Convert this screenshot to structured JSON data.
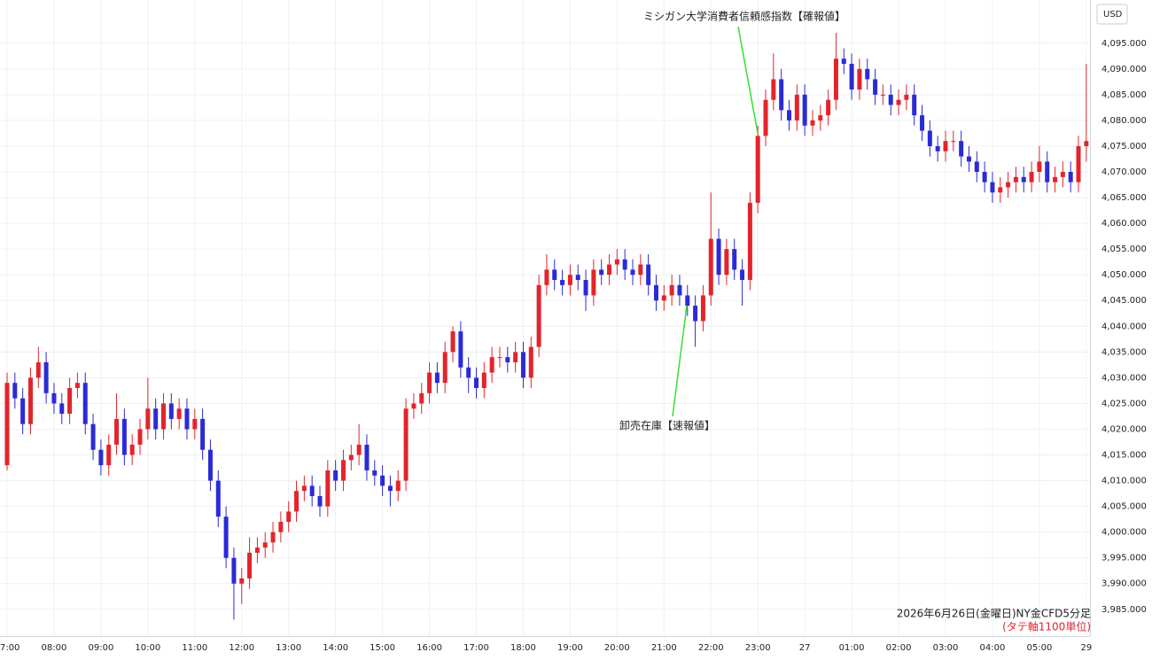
{
  "chart_data": {
    "type": "candlestick",
    "currency": "USD",
    "note": "2026年6月26日(金曜日)NY金CFD5分足",
    "note2": "(タテ軸1100単位)",
    "annotations": [
      {
        "text": "ミシガン大学消費者信頼感指数【確報値】"
      },
      {
        "text": "卸売在庫【速報値】"
      }
    ],
    "up_color": "#e3242b",
    "down_color": "#2b2bd6",
    "grid": true,
    "categories": [
      "07:00",
      null,
      null,
      null,
      null,
      null,
      "08:00",
      null,
      null,
      null,
      null,
      null,
      "09:00",
      null,
      null,
      null,
      null,
      null,
      "10:00",
      null,
      null,
      null,
      null,
      null,
      "11:00",
      null,
      null,
      null,
      null,
      null,
      "12:00",
      null,
      null,
      null,
      null,
      null,
      "13:00",
      null,
      null,
      null,
      null,
      null,
      "14:00",
      null,
      null,
      null,
      null,
      null,
      "15:00",
      null,
      null,
      null,
      null,
      null,
      "16:00",
      null,
      null,
      null,
      null,
      null,
      "17:00",
      null,
      null,
      null,
      null,
      null,
      "18:00",
      null,
      null,
      null,
      null,
      null,
      "19:00",
      null,
      null,
      null,
      null,
      null,
      "20:00",
      null,
      null,
      null,
      null,
      null,
      "21:00",
      null,
      null,
      null,
      null,
      null,
      "22:00",
      null,
      null,
      null,
      null,
      null,
      "23:00",
      null,
      null,
      null,
      null,
      null,
      "27",
      null,
      null,
      null,
      null,
      null,
      "01:00",
      null,
      null,
      null,
      null,
      null,
      "02:00",
      null,
      null,
      null,
      null,
      null,
      "03:00",
      null,
      null,
      null,
      null,
      null,
      "04:00",
      null,
      null,
      null,
      null,
      null,
      "05:00",
      null,
      null,
      null,
      null,
      null,
      "29"
    ],
    "open": [
      4013,
      4029,
      4026,
      4021,
      4030,
      4033,
      4027,
      4025,
      4023,
      4028,
      4029,
      4021,
      4016,
      4013,
      4017,
      4022,
      4015,
      4017,
      4020,
      4024,
      4020,
      4025,
      4022,
      4024,
      4020,
      4022,
      4016,
      4010,
      4003,
      3995,
      3990,
      3991,
      3996,
      3997,
      3998,
      4000,
      4002,
      4004,
      4008,
      4009,
      4007,
      4005,
      4012,
      4010,
      4014,
      4015,
      4017,
      4012,
      4011,
      4009,
      4008,
      4010,
      4024,
      4025,
      4027,
      4031,
      4029,
      4035,
      4039,
      4032,
      4030,
      4028,
      4031,
      4034,
      4034,
      4033,
      4035,
      4030,
      4036,
      4048,
      4051,
      4049,
      4048,
      4050,
      4049,
      4046,
      4051,
      4050,
      4052,
      4053,
      4051,
      4050,
      4052,
      4048,
      4045,
      4046,
      4048,
      4046,
      4044,
      4041,
      4046,
      4057,
      4050,
      4055,
      4051,
      4049,
      4064,
      4077,
      4084,
      4088,
      4082,
      4080,
      4085,
      4079,
      4080,
      4081,
      4084,
      4092,
      4091,
      4086,
      4090,
      4088,
      4085,
      4085,
      4083,
      4084,
      4085,
      4081,
      4078,
      4075,
      4074,
      4076,
      4076,
      4073,
      4072,
      4070,
      4068,
      4066,
      4067,
      4068,
      4069,
      4068,
      4070,
      4072,
      4068,
      4069,
      4070,
      4068,
      4075
    ],
    "high": [
      4031,
      4031,
      4028,
      4032,
      4036,
      4035,
      4029,
      4027,
      4030,
      4031,
      4031,
      4023,
      4018,
      4019,
      4027,
      4024,
      4019,
      4022,
      4030,
      4026,
      4027,
      4027,
      4026,
      4026,
      4024,
      4024,
      4018,
      4012,
      4005,
      3997,
      3993,
      3999,
      3999,
      4000,
      4002,
      4004,
      4006,
      4010,
      4011,
      4011,
      4009,
      4014,
      4014,
      4016,
      4017,
      4021,
      4019,
      4014,
      4013,
      4011,
      4012,
      4026,
      4027,
      4029,
      4033,
      4033,
      4037,
      4040,
      4041,
      4034,
      4032,
      4033,
      4036,
      4036,
      4036,
      4037,
      4037,
      4038,
      4050,
      4054,
      4053,
      4051,
      4052,
      4052,
      4051,
      4053,
      4053,
      4054,
      4055,
      4055,
      4053,
      4054,
      4054,
      4050,
      4048,
      4050,
      4050,
      4048,
      4046,
      4048,
      4066,
      4059,
      4057,
      4057,
      4053,
      4066,
      4079,
      4086,
      4093,
      4090,
      4084,
      4087,
      4087,
      4082,
      4083,
      4086,
      4097,
      4094,
      4093,
      4092,
      4092,
      4090,
      4087,
      4087,
      4086,
      4087,
      4087,
      4083,
      4080,
      4077,
      4078,
      4078,
      4078,
      4075,
      4074,
      4072,
      4070,
      4069,
      4070,
      4071,
      4071,
      4072,
      4075,
      4074,
      4071,
      4072,
      4072,
      4077,
      4091
    ],
    "low": [
      4012,
      4024,
      4019,
      4019,
      4028,
      4025,
      4023,
      4021,
      4021,
      4026,
      4019,
      4014,
      4011,
      4011,
      4015,
      4013,
      4013,
      4015,
      4018,
      4018,
      4018,
      4020,
      4020,
      4018,
      4018,
      4014,
      4008,
      4001,
      3993,
      3983,
      3986,
      3989,
      3994,
      3995,
      3996,
      3998,
      4000,
      4002,
      4006,
      4005,
      4003,
      4003,
      4008,
      4008,
      4012,
      4013,
      4010,
      4009,
      4007,
      4005,
      4006,
      4008,
      4022,
      4023,
      4025,
      4027,
      4027,
      4033,
      4030,
      4027,
      4026,
      4026,
      4029,
      4032,
      4031,
      4031,
      4028,
      4028,
      4034,
      4046,
      4047,
      4046,
      4046,
      4047,
      4043,
      4044,
      4048,
      4048,
      4050,
      4049,
      4048,
      4048,
      4046,
      4043,
      4043,
      4044,
      4044,
      4042,
      4036,
      4039,
      4044,
      4048,
      4048,
      4049,
      4044,
      4047,
      4062,
      4075,
      4082,
      4080,
      4078,
      4078,
      4077,
      4077,
      4078,
      4079,
      4082,
      4089,
      4084,
      4084,
      4086,
      4083,
      4083,
      4081,
      4081,
      4082,
      4079,
      4076,
      4073,
      4072,
      4072,
      4074,
      4071,
      4070,
      4068,
      4066,
      4064,
      4064,
      4065,
      4066,
      4066,
      4066,
      4068,
      4066,
      4066,
      4067,
      4066,
      4066,
      4072
    ],
    "close": [
      4029,
      4026,
      4021,
      4030,
      4033,
      4027,
      4025,
      4023,
      4028,
      4029,
      4021,
      4016,
      4013,
      4017,
      4022,
      4015,
      4017,
      4020,
      4024,
      4020,
      4025,
      4022,
      4024,
      4020,
      4022,
      4016,
      4010,
      4003,
      3995,
      3990,
      3991,
      3996,
      3997,
      3998,
      4000,
      4002,
      4004,
      4008,
      4009,
      4007,
      4005,
      4012,
      4010,
      4014,
      4015,
      4017,
      4012,
      4011,
      4009,
      4008,
      4010,
      4024,
      4025,
      4027,
      4031,
      4029,
      4035,
      4039,
      4032,
      4030,
      4028,
      4031,
      4034,
      4034,
      4033,
      4035,
      4030,
      4036,
      4048,
      4051,
      4049,
      4048,
      4050,
      4049,
      4046,
      4051,
      4050,
      4052,
      4053,
      4051,
      4050,
      4052,
      4048,
      4045,
      4046,
      4048,
      4046,
      4044,
      4041,
      4046,
      4057,
      4050,
      4055,
      4051,
      4049,
      4064,
      4077,
      4084,
      4088,
      4082,
      4080,
      4085,
      4079,
      4080,
      4081,
      4084,
      4092,
      4091,
      4086,
      4090,
      4088,
      4085,
      4085,
      4083,
      4084,
      4085,
      4081,
      4078,
      4075,
      4074,
      4076,
      4076,
      4073,
      4072,
      4070,
      4068,
      4066,
      4067,
      4068,
      4069,
      4068,
      4070,
      4072,
      4068,
      4069,
      4070,
      4068,
      4075,
      4076
    ],
    "ylim": [
      3979.8,
      4103.4
    ],
    "yticks": [
      {
        "value": 3985,
        "label": "3,985.000"
      },
      {
        "value": 3990,
        "label": "3,990.000"
      },
      {
        "value": 3995,
        "label": "3,995.000"
      },
      {
        "value": 4000,
        "label": "4,000.000"
      },
      {
        "value": 4005,
        "label": "4,005.000"
      },
      {
        "value": 4010,
        "label": "4,010.000"
      },
      {
        "value": 4015,
        "label": "4,015.000"
      },
      {
        "value": 4020,
        "label": "4,020.000"
      },
      {
        "value": 4025,
        "label": "4,025.000"
      },
      {
        "value": 4030,
        "label": "4,030.000"
      },
      {
        "value": 4035,
        "label": "4,035.000"
      },
      {
        "value": 4040,
        "label": "4,040.000"
      },
      {
        "value": 4045,
        "label": "4,045.000"
      },
      {
        "value": 4050,
        "label": "4,050.000"
      },
      {
        "value": 4055,
        "label": "4,055.000"
      },
      {
        "value": 4060,
        "label": "4,060.000"
      },
      {
        "value": 4065,
        "label": "4,065.000"
      },
      {
        "value": 4070,
        "label": "4,070.000"
      },
      {
        "value": 4075,
        "label": "4,075.000"
      },
      {
        "value": 4080,
        "label": "4,080.000"
      },
      {
        "value": 4085,
        "label": "4,085.000"
      },
      {
        "value": 4090,
        "label": "4,090.000"
      },
      {
        "value": 4095,
        "label": "4,095.000"
      }
    ]
  }
}
